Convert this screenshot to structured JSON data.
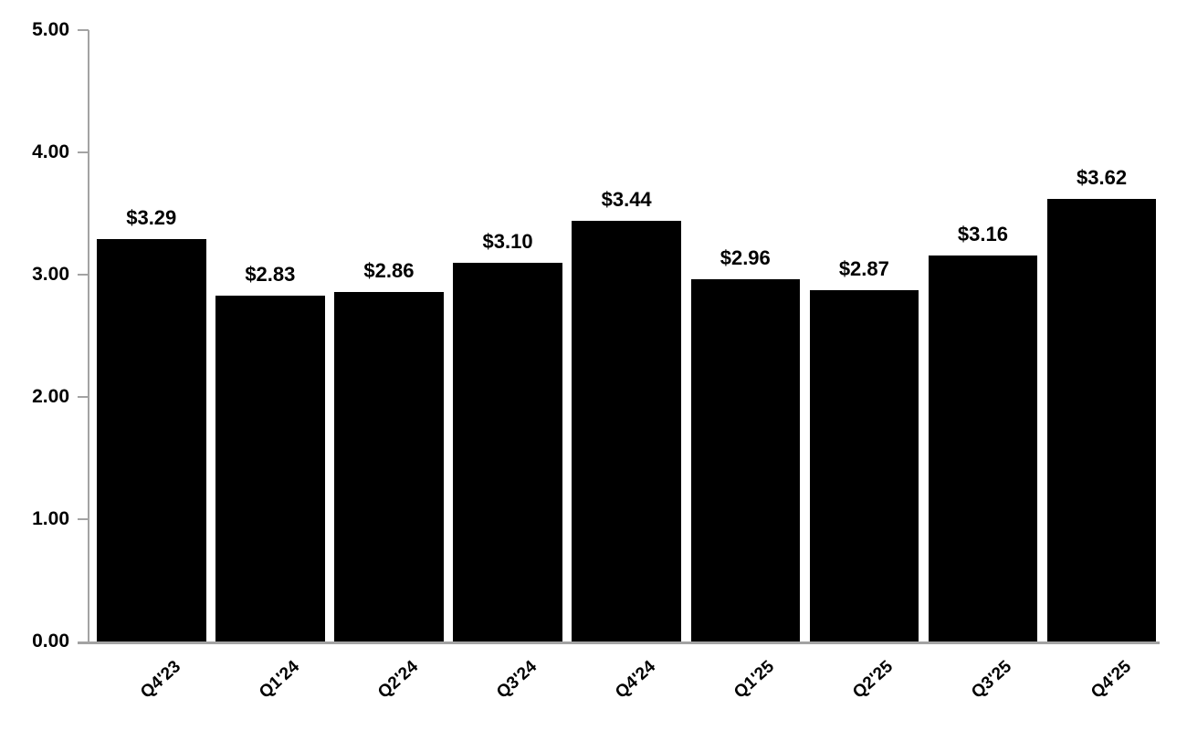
{
  "chart_data": {
    "type": "bar",
    "title": "",
    "xlabel": "",
    "ylabel": "",
    "categories": [
      "Q4'23",
      "Q1'24",
      "Q2'24",
      "Q3'24",
      "Q4'24",
      "Q1'25",
      "Q2'25",
      "Q3'25",
      "Q4'25"
    ],
    "values": [
      3.29,
      2.83,
      2.86,
      3.1,
      3.44,
      2.96,
      2.87,
      3.16,
      3.62
    ],
    "value_labels": [
      "$3.29",
      "$2.83",
      "$2.86",
      "$3.10",
      "$3.44",
      "$2.96",
      "$2.87",
      "$3.16",
      "$3.62"
    ],
    "ylim": [
      0,
      5
    ],
    "yticks": [
      0,
      1,
      2,
      3,
      4,
      5
    ],
    "ytick_labels": [
      "0.00",
      "1.00",
      "2.00",
      "3.00",
      "4.00",
      "5.00"
    ],
    "grid": false,
    "legend": "none",
    "bar_color": "#000000",
    "axis_color": "#a3a3a3",
    "label_color": "#000000"
  }
}
